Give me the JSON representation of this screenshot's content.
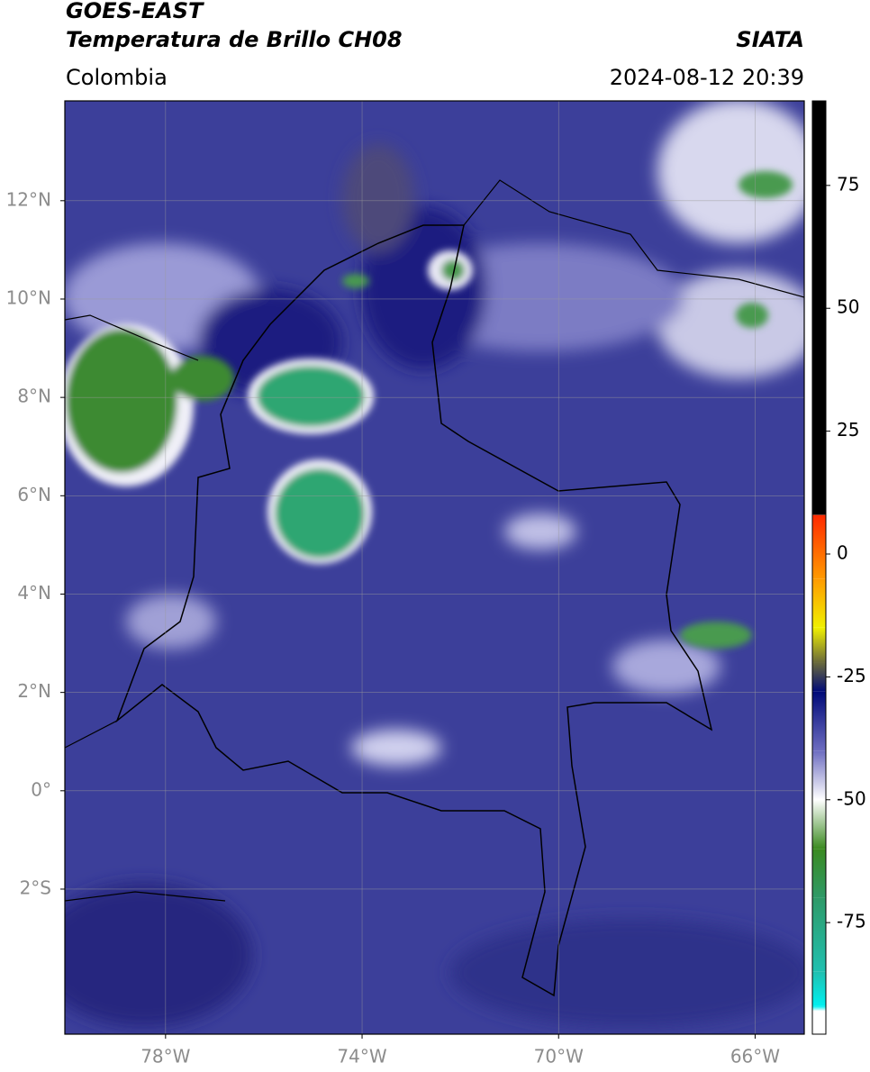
{
  "chart_data": {
    "type": "map",
    "title": "GOES-EAST",
    "subtitle": "Temperatura de Brillo CH08",
    "source": "SIATA",
    "region": "Colombia",
    "datetime": "2024-08-12 20:39",
    "xlim": [
      -80.05,
      -65.0
    ],
    "ylim": [
      -4.95,
      14.03
    ],
    "xticks": [
      {
        "value": -78,
        "label": "78°W"
      },
      {
        "value": -74,
        "label": "74°W"
      },
      {
        "value": -70,
        "label": "70°W"
      },
      {
        "value": -66,
        "label": "66°W"
      }
    ],
    "yticks": [
      {
        "value": 12,
        "label": "12°N"
      },
      {
        "value": 10,
        "label": "10°N"
      },
      {
        "value": 8,
        "label": "8°N"
      },
      {
        "value": 6,
        "label": "6°N"
      },
      {
        "value": 4,
        "label": "4°N"
      },
      {
        "value": 2,
        "label": "2°N"
      },
      {
        "value": 0,
        "label": "0°"
      },
      {
        "value": -2,
        "label": "2°S"
      }
    ],
    "grid": true,
    "colorbar": {
      "lim": [
        -97.7,
        92.2
      ],
      "ticks": [
        75,
        50,
        25,
        0,
        -25,
        -50,
        -75
      ],
      "stops": [
        {
          "value": 92.2,
          "color": "#000000"
        },
        {
          "value": 8,
          "color": "#000000"
        },
        {
          "value": 7.9,
          "color": "#ff2a00"
        },
        {
          "value": -5,
          "color": "#ff9a00"
        },
        {
          "value": -15,
          "color": "#f0f000"
        },
        {
          "value": -22,
          "color": "#6b6b3a"
        },
        {
          "value": -28,
          "color": "#000a78"
        },
        {
          "value": -40,
          "color": "#6c6cc0"
        },
        {
          "value": -50,
          "color": "#ffffff"
        },
        {
          "value": -60,
          "color": "#3a8a20"
        },
        {
          "value": -70,
          "color": "#2e9a68"
        },
        {
          "value": -85,
          "color": "#20c0b0"
        },
        {
          "value": -92,
          "color": "#00f0f0"
        },
        {
          "value": -93,
          "color": "#ffffff"
        },
        {
          "value": -97.7,
          "color": "#ffffff"
        }
      ]
    }
  }
}
